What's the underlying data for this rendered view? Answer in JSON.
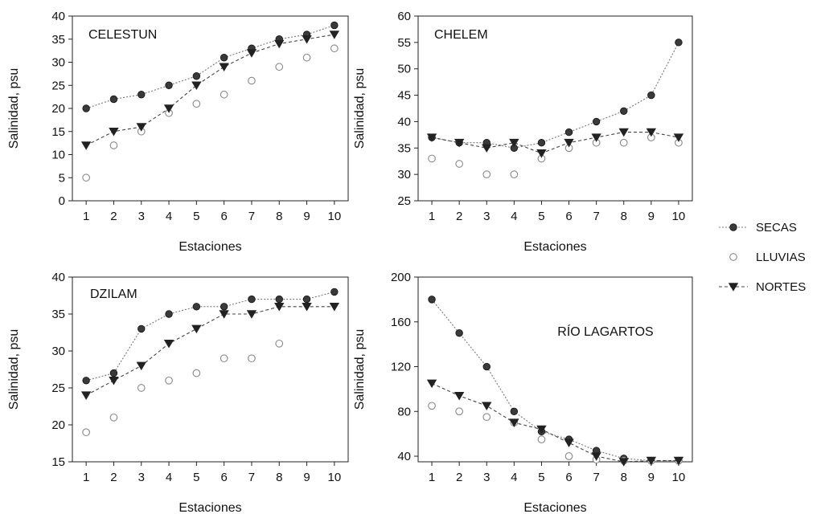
{
  "legend": {
    "placement": "right",
    "items": [
      {
        "label": "SECAS",
        "marker": "filled-circle",
        "line": "dotted"
      },
      {
        "label": "LLUVIAS",
        "marker": "open-circle",
        "line": "none"
      },
      {
        "label": "NORTES",
        "marker": "down-triangle",
        "line": "dashed"
      }
    ]
  },
  "colors": {
    "secas": "#3a3a3a",
    "lluvias": "#888888",
    "nortes": "#222222",
    "axis": "#222222"
  },
  "chart_data": [
    {
      "type": "line",
      "title": "CELESTUN",
      "xlabel": "Estaciones",
      "ylabel": "Salinidad, psu",
      "x": [
        1,
        2,
        3,
        4,
        5,
        6,
        7,
        8,
        9,
        10
      ],
      "xticks": [
        "1",
        "2",
        "3",
        "4",
        "5",
        "6",
        "7",
        "8",
        "9",
        "10"
      ],
      "ylim": [
        0,
        40
      ],
      "yticks": [
        0,
        5,
        10,
        15,
        20,
        25,
        30,
        35,
        40
      ],
      "series": [
        {
          "name": "SECAS",
          "values": [
            20,
            22,
            23,
            25,
            27,
            31,
            33,
            35,
            36,
            38
          ]
        },
        {
          "name": "LLUVIAS",
          "values": [
            5,
            12,
            15,
            19,
            21,
            23,
            26,
            29,
            31,
            33
          ]
        },
        {
          "name": "NORTES",
          "values": [
            12,
            15,
            16,
            20,
            25,
            29,
            32,
            34,
            35,
            36
          ]
        }
      ]
    },
    {
      "type": "line",
      "title": "CHELEM",
      "xlabel": "Estaciones",
      "ylabel": "Salinidad, psu",
      "x": [
        1,
        2,
        3,
        4,
        5,
        6,
        7,
        8,
        9,
        10
      ],
      "xticks": [
        "1",
        "2",
        "3",
        "4",
        "5",
        "6",
        "7",
        "8",
        "9",
        "10"
      ],
      "ylim": [
        25,
        60
      ],
      "yticks": [
        25,
        30,
        35,
        40,
        45,
        50,
        55,
        60
      ],
      "series": [
        {
          "name": "SECAS",
          "values": [
            37,
            36,
            36,
            35,
            36,
            38,
            40,
            42,
            45,
            55
          ]
        },
        {
          "name": "LLUVIAS",
          "values": [
            33,
            32,
            30,
            30,
            33,
            35,
            36,
            36,
            37,
            36
          ]
        },
        {
          "name": "NORTES",
          "values": [
            37,
            36,
            35,
            36,
            34,
            36,
            37,
            38,
            38,
            37
          ]
        }
      ]
    },
    {
      "type": "line",
      "title": "DZILAM",
      "xlabel": "Estaciones",
      "ylabel": "Salinidad, psu",
      "x": [
        1,
        2,
        3,
        4,
        5,
        6,
        7,
        8,
        9,
        10
      ],
      "xticks": [
        "1",
        "2",
        "3",
        "4",
        "5",
        "6",
        "7",
        "8",
        "9",
        "10"
      ],
      "ylim": [
        15,
        40
      ],
      "yticks": [
        15,
        20,
        25,
        30,
        35,
        40
      ],
      "series": [
        {
          "name": "SECAS",
          "values": [
            26,
            27,
            33,
            35,
            36,
            36,
            37,
            37,
            37,
            38
          ]
        },
        {
          "name": "LLUVIAS",
          "values": [
            19,
            21,
            25,
            26,
            27,
            29,
            29,
            31,
            null,
            null
          ]
        },
        {
          "name": "NORTES",
          "values": [
            24,
            26,
            28,
            31,
            33,
            35,
            35,
            36,
            36,
            36
          ]
        }
      ]
    },
    {
      "type": "line",
      "title": "RÍO LAGARTOS",
      "xlabel": "Estaciones",
      "ylabel": "Salinidad, psu",
      "x": [
        1,
        2,
        3,
        4,
        5,
        6,
        7,
        8,
        9,
        10
      ],
      "xticks": [
        "1",
        "2",
        "3",
        "4",
        "5",
        "6",
        "7",
        "8",
        "9",
        "10"
      ],
      "ylim": [
        35,
        200
      ],
      "yticks": [
        40,
        80,
        120,
        160,
        200
      ],
      "series": [
        {
          "name": "SECAS",
          "values": [
            180,
            150,
            120,
            80,
            62,
            55,
            45,
            38,
            36,
            36
          ]
        },
        {
          "name": "LLUVIAS",
          "values": [
            85,
            80,
            75,
            70,
            55,
            40,
            37,
            36,
            36,
            36
          ]
        },
        {
          "name": "NORTES",
          "values": [
            105,
            94,
            85,
            70,
            64,
            52,
            40,
            35,
            36,
            36
          ]
        }
      ]
    }
  ]
}
